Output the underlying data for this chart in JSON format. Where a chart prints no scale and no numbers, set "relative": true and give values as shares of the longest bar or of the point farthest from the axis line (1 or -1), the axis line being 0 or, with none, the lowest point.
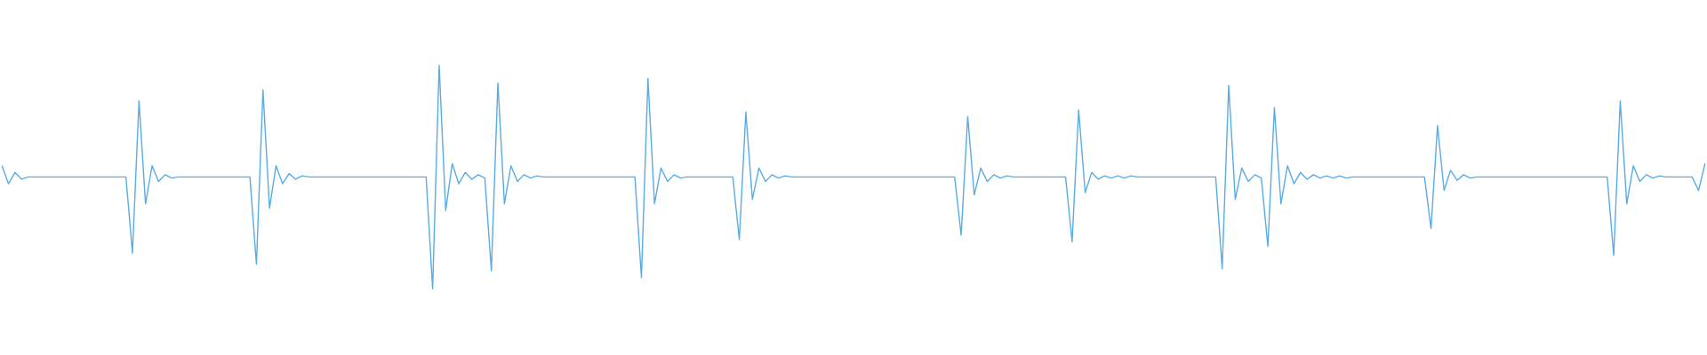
{
  "chart_data": {
    "type": "line",
    "relative": true,
    "categories": [
      null,
      null,
      null,
      null,
      null,
      null,
      null,
      null,
      null,
      null,
      null,
      null,
      null,
      null,
      null,
      null,
      null,
      null,
      null,
      null,
      null,
      null,
      null,
      null,
      null,
      null,
      null,
      null,
      null,
      null,
      null,
      null,
      null,
      null,
      null,
      null,
      null,
      null,
      null,
      null,
      null,
      null,
      null,
      null,
      null,
      null,
      null,
      null,
      null,
      null,
      null,
      null,
      null,
      null,
      null,
      null,
      null,
      null,
      null,
      null,
      null,
      null,
      null,
      null,
      null,
      null,
      null,
      null,
      null,
      null,
      null,
      null,
      null,
      null,
      null,
      null,
      null,
      null,
      null,
      null,
      null,
      null,
      null,
      null,
      null,
      null,
      null,
      null,
      null,
      null,
      null,
      null,
      null,
      null,
      null,
      null,
      null,
      null,
      null,
      null,
      null,
      null,
      null,
      null,
      null,
      null,
      null,
      null,
      null,
      null,
      null,
      null,
      null,
      null,
      null,
      null,
      null,
      null,
      null,
      null,
      null,
      null,
      null,
      null,
      null,
      null,
      null,
      null,
      null,
      null,
      null,
      null,
      null,
      null,
      null,
      null,
      null,
      null,
      null,
      null,
      null,
      null,
      null,
      null,
      null,
      null,
      null,
      null,
      null,
      null,
      null,
      null,
      null,
      null,
      null,
      null,
      null,
      null,
      null,
      null,
      null,
      null,
      null,
      null,
      null,
      null,
      null,
      null,
      null,
      null,
      null,
      null,
      null,
      null,
      null,
      null,
      null,
      null,
      null,
      null,
      null,
      null,
      null,
      null,
      null,
      null,
      null,
      null,
      null,
      null,
      null,
      null,
      null,
      null,
      null,
      null,
      null,
      null,
      null,
      null,
      null,
      null,
      null,
      null,
      null,
      null,
      null,
      null,
      null,
      null,
      null,
      null,
      null,
      null,
      null,
      null,
      null,
      null,
      null,
      null,
      null,
      null,
      null,
      null,
      null,
      null,
      null,
      null,
      null,
      null,
      null,
      null,
      null,
      null,
      null,
      null,
      null,
      null,
      null,
      null,
      null,
      null,
      null,
      null,
      null,
      null,
      null,
      null,
      null,
      null,
      null,
      null,
      null,
      null,
      null,
      null,
      null,
      null,
      null,
      null,
      null,
      null
    ],
    "series": [
      {
        "color": "#5aace4",
        "values": [
          0.55,
          0.47,
          0.52,
          0.49,
          0.5,
          0.5,
          0.5,
          0.5,
          0.5,
          0.5,
          0.5,
          0.5,
          0.5,
          0.5,
          0.5,
          0.5,
          0.5,
          0.5,
          0.5,
          0.5,
          0.16,
          0.84,
          0.38,
          0.55,
          0.48,
          0.51,
          0.495,
          0.5,
          0.5,
          0.5,
          0.5,
          0.5,
          0.5,
          0.5,
          0.5,
          0.5,
          0.5,
          0.5,
          0.5,
          0.11,
          0.89,
          0.36,
          0.55,
          0.47,
          0.515,
          0.49,
          0.505,
          0.5,
          0.5,
          0.5,
          0.5,
          0.5,
          0.5,
          0.5,
          0.5,
          0.5,
          0.5,
          0.5,
          0.5,
          0.5,
          0.5,
          0.5,
          0.5,
          0.5,
          0.5,
          0.5,
          0,
          1,
          0.35,
          0.56,
          0.47,
          0.52,
          0.49,
          0.51,
          0.495,
          0.08,
          0.92,
          0.38,
          0.55,
          0.48,
          0.51,
          0.495,
          0.505,
          0.5,
          0.5,
          0.5,
          0.5,
          0.5,
          0.5,
          0.5,
          0.5,
          0.5,
          0.5,
          0.5,
          0.5,
          0.5,
          0.5,
          0.5,
          0.05,
          0.94,
          0.38,
          0.54,
          0.48,
          0.51,
          0.495,
          0.5,
          0.5,
          0.5,
          0.5,
          0.5,
          0.5,
          0.5,
          0.5,
          0.22,
          0.79,
          0.4,
          0.54,
          0.48,
          0.51,
          0.495,
          0.505,
          0.5,
          0.5,
          0.5,
          0.5,
          0.5,
          0.5,
          0.5,
          0.5,
          0.5,
          0.5,
          0.5,
          0.5,
          0.5,
          0.5,
          0.5,
          0.5,
          0.5,
          0.5,
          0.5,
          0.5,
          0.5,
          0.5,
          0.5,
          0.5,
          0.5,
          0.5,
          0.24,
          0.77,
          0.42,
          0.54,
          0.48,
          0.51,
          0.495,
          0.505,
          0.5,
          0.5,
          0.5,
          0.5,
          0.5,
          0.5,
          0.5,
          0.5,
          0.5,
          0.21,
          0.8,
          0.43,
          0.52,
          0.49,
          0.505,
          0.495,
          0.505,
          0.495,
          0.505,
          0.5,
          0.5,
          0.5,
          0.5,
          0.5,
          0.5,
          0.5,
          0.5,
          0.5,
          0.5,
          0.5,
          0.5,
          0.5,
          0.09,
          0.91,
          0.4,
          0.54,
          0.48,
          0.51,
          0.495,
          0.19,
          0.81,
          0.38,
          0.55,
          0.47,
          0.52,
          0.49,
          0.51,
          0.495,
          0.505,
          0.495,
          0.505,
          0.495,
          0.5,
          0.5,
          0.5,
          0.5,
          0.5,
          0.5,
          0.5,
          0.5,
          0.5,
          0.5,
          0.5,
          0.5,
          0.27,
          0.73,
          0.44,
          0.53,
          0.485,
          0.51,
          0.495,
          0.5,
          0.5,
          0.5,
          0.5,
          0.5,
          0.5,
          0.5,
          0.5,
          0.5,
          0.5,
          0.5,
          0.5,
          0.5,
          0.5,
          0.5,
          0.5,
          0.5,
          0.5,
          0.5,
          0.5,
          0.5,
          0.15,
          0.84,
          0.38,
          0.55,
          0.48,
          0.51,
          0.495,
          0.505,
          0.5,
          0.5,
          0.5,
          0.5,
          0.5,
          0.44,
          0.56
        ]
      }
    ]
  }
}
